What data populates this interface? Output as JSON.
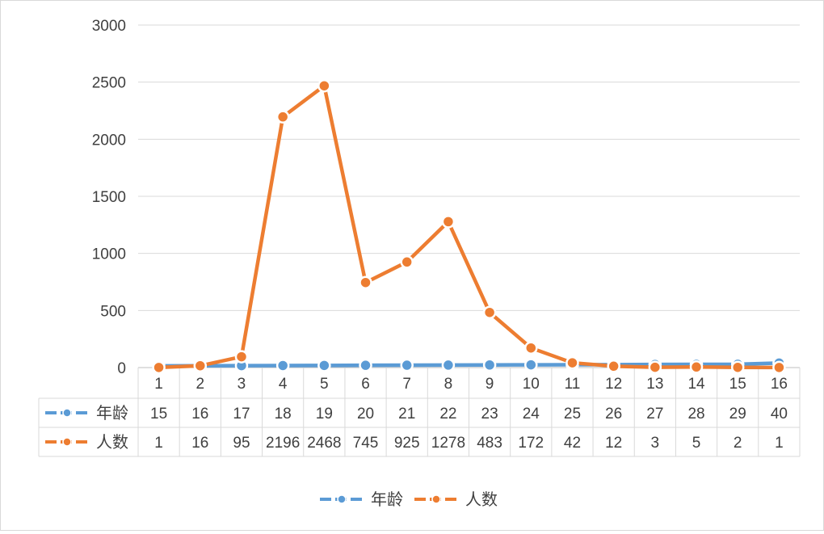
{
  "chart_data": {
    "type": "line",
    "categories": [
      "1",
      "2",
      "3",
      "4",
      "5",
      "6",
      "7",
      "8",
      "9",
      "10",
      "11",
      "12",
      "13",
      "14",
      "15",
      "16"
    ],
    "series": [
      {
        "name": "年龄",
        "color": "#5b9bd5",
        "values": [
          15,
          16,
          17,
          18,
          19,
          20,
          21,
          22,
          23,
          24,
          25,
          26,
          27,
          28,
          29,
          40
        ]
      },
      {
        "name": "人数",
        "color": "#ed7d31",
        "values": [
          1,
          16,
          95,
          2196,
          2468,
          745,
          925,
          1278,
          483,
          172,
          42,
          12,
          3,
          5,
          2,
          1
        ]
      }
    ],
    "ylim": [
      0,
      3000
    ],
    "yticks": [
      0,
      500,
      1000,
      1500,
      2000,
      2500,
      3000
    ],
    "grid": true,
    "data_table": true,
    "legend": "bottom",
    "title": "",
    "xlabel": "",
    "ylabel": ""
  }
}
